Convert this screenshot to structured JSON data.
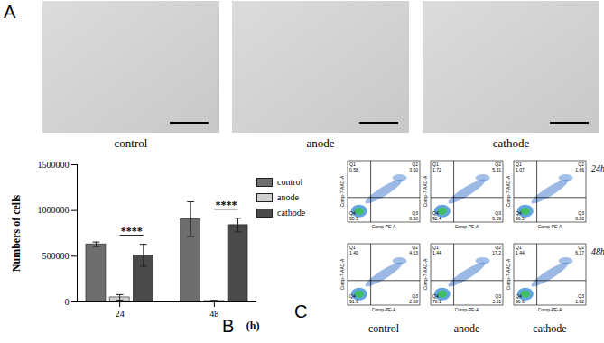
{
  "panel_a": {
    "label": "A",
    "captions": [
      "control",
      "anode",
      "cathode"
    ]
  },
  "panel_b": {
    "label": "B"
  },
  "chart_data": {
    "type": "bar",
    "x_label": "(h)",
    "y_label": "Numbers of cells",
    "categories": [
      "24",
      "48"
    ],
    "series": [
      {
        "name": "control",
        "color": "#6e6e6e",
        "values": [
          630000,
          905000
        ],
        "errors": [
          25000,
          190000
        ]
      },
      {
        "name": "anode",
        "color": "#cfcfcf",
        "values": [
          50000,
          10000
        ],
        "errors": [
          30000,
          8000
        ]
      },
      {
        "name": "cathode",
        "color": "#4a4a4a",
        "values": [
          510000,
          840000
        ],
        "errors": [
          120000,
          75000
        ]
      }
    ],
    "ylim": [
      0,
      1500000
    ],
    "yticks": [
      0,
      500000,
      1000000,
      1500000
    ],
    "grid": false,
    "legend": "right",
    "annotations": [
      {
        "text": "****",
        "category": "24",
        "from": "anode",
        "to": "cathode"
      },
      {
        "text": "****",
        "category": "48",
        "from": "anode",
        "to": "cathode"
      }
    ]
  },
  "panel_c": {
    "label": "C",
    "x_label": "Comp-PE-A",
    "y_label": "Comp-7-AAD-A",
    "columns": [
      "control",
      "anode",
      "cathode"
    ],
    "quadrants": [
      "Q1",
      "Q2",
      "Q3",
      "Q4"
    ],
    "rows": [
      {
        "time": "24h",
        "plots": [
          [
            "0.58",
            "3.60",
            "0.50",
            "95.3"
          ],
          [
            "1.72",
            "5.31",
            "0.59",
            "92.4"
          ],
          [
            "1.07",
            "1.66",
            "0.80",
            "96.5"
          ]
        ]
      },
      {
        "time": "48h",
        "plots": [
          [
            "1.40",
            "4.63",
            "2.08",
            "91.9"
          ],
          [
            "1.44",
            "17.2",
            "3.31",
            "78.1"
          ],
          [
            "1.44",
            "6.17",
            "1.82",
            "90.6"
          ]
        ]
      }
    ]
  }
}
